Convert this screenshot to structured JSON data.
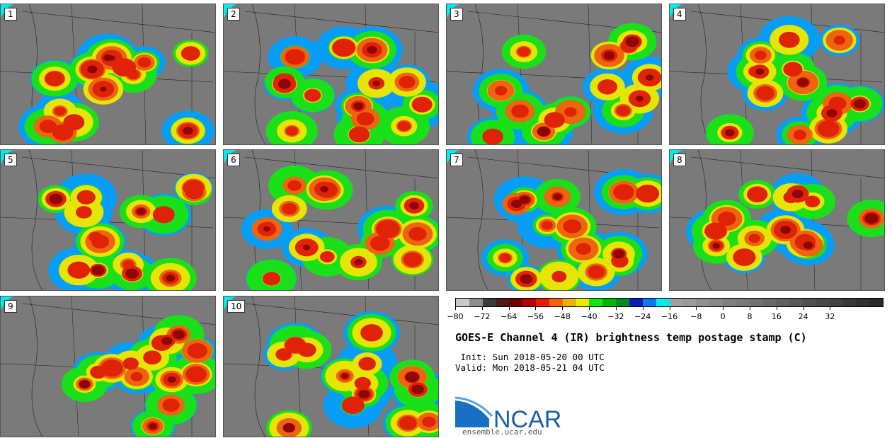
{
  "panels": [
    {
      "label": "1"
    },
    {
      "label": "2"
    },
    {
      "label": "3"
    },
    {
      "label": "4"
    },
    {
      "label": "5"
    },
    {
      "label": "6"
    },
    {
      "label": "7"
    },
    {
      "label": "8"
    },
    {
      "label": "9"
    },
    {
      "label": "10"
    }
  ],
  "colorbar": {
    "ticks": [
      "−80",
      "−72",
      "−64",
      "−56",
      "−48",
      "−40",
      "−32",
      "−24",
      "−16",
      "−8",
      "0",
      "8",
      "16",
      "24",
      "32"
    ],
    "colors": [
      "#c8c8c8",
      "#8c8c8c",
      "#3a3a3a",
      "#4a1a1a",
      "#700000",
      "#b40000",
      "#e61e00",
      "#f5640a",
      "#e6b400",
      "#ebeb00",
      "#14e614",
      "#00b400",
      "#008c1e",
      "#0a1eb4",
      "#0a78f0",
      "#00ebeb",
      "#a0a0a0",
      "#9a9a9a",
      "#909090",
      "#888888",
      "#808080",
      "#787878",
      "#707070",
      "#686868",
      "#606060",
      "#585858",
      "#505050",
      "#484848",
      "#404040",
      "#383838",
      "#303030",
      "#282828"
    ]
  },
  "title": "GOES-E Channel 4 (IR) brightness temp postage stamp (C)",
  "init": " Init: Sun 2018-05-20 00 UTC",
  "valid": "Valid: Mon 2018-05-21 04 UTC",
  "logo": {
    "text": "NCAR",
    "url": "ensemble.ucar.edu",
    "color": "#1a5ea8"
  }
}
